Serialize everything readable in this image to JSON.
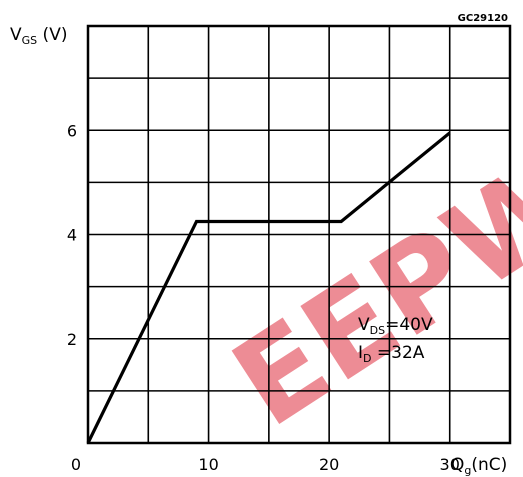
{
  "chart_data": {
    "type": "line",
    "code": "GC29120",
    "ylabel": {
      "main": "V",
      "sub": "GS",
      "unit": " (V)"
    },
    "xlabel": {
      "main": "Q",
      "sub": "g",
      "unit": "(nC)"
    },
    "xlim": [
      0,
      35
    ],
    "ylim": [
      0,
      8
    ],
    "x_ticks": [
      "0",
      "10",
      "20",
      "30"
    ],
    "y_ticks": [
      "2",
      "4",
      "6"
    ],
    "grid": true,
    "series": [
      {
        "x": [
          0,
          9,
          21,
          30
        ],
        "y": [
          0,
          4.25,
          4.25,
          5.95
        ]
      }
    ],
    "annotations": [
      {
        "main": "V",
        "sub": "DS",
        "rest": "=40V"
      },
      {
        "main": "I",
        "sub": "D",
        "rest": " =32A"
      }
    ]
  },
  "watermark": {
    "text": "EEPW",
    "color": "#e0303f"
  }
}
